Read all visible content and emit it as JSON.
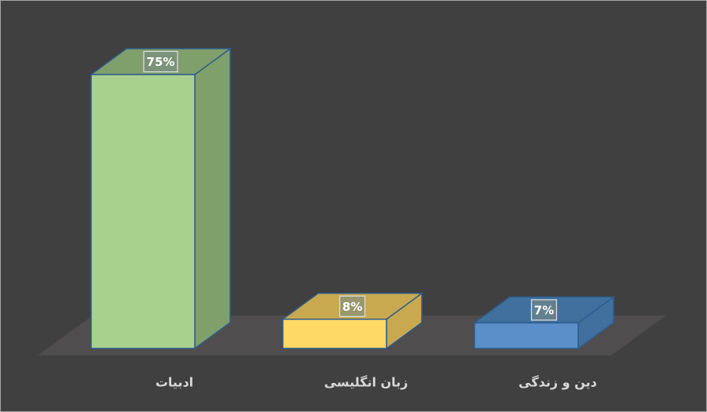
{
  "chart_data": {
    "type": "bar3d",
    "categories": [
      "ادبیات",
      "زبان انگلیسی",
      "دین و زندگی"
    ],
    "values": [
      75,
      8,
      7
    ],
    "value_labels": [
      "75%",
      "8%",
      "7%"
    ],
    "colors": [
      "#a9d18e",
      "#ffd966",
      "#5b8fc9"
    ],
    "side_colors": [
      "#7f9f6b",
      "#c9a94f",
      "#41709f"
    ]
  }
}
